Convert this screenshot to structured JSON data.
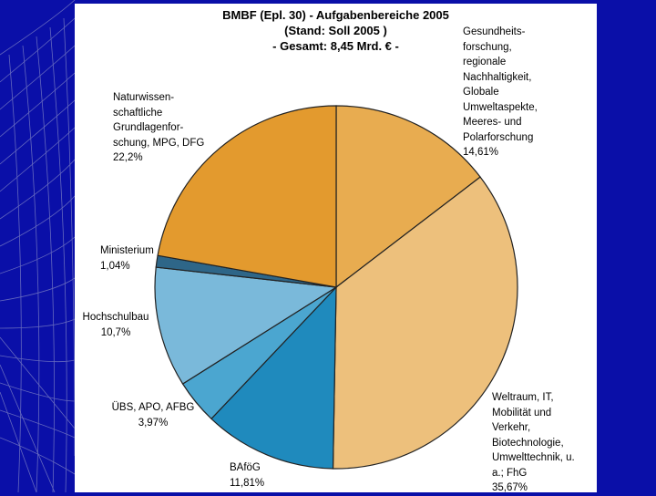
{
  "chart_data": {
    "type": "pie",
    "title": [
      "BMBF (Epl. 30) - Aufgabenbereiche 2005",
      "(Stand: Soll 2005 )",
      "- Gesamt: 8,45 Mrd. € -"
    ],
    "slices": [
      {
        "label_lines": [
          "Gesundheits-",
          "forschung,",
          "regionale",
          "Nachhaltigkeit,",
          "Globale",
          "Umweltaspekte,",
          "Meeres- und",
          "Polarforschung"
        ],
        "value_text": "14,61%",
        "value": 14.61,
        "color": "#e8ac50"
      },
      {
        "label_lines": [
          "Weltraum, IT,",
          "Mobilität und",
          "Verkehr,",
          "Biotechnologie,",
          "Umwelttechnik, u.",
          "a.; FhG"
        ],
        "value_text": "35,67%",
        "value": 35.67,
        "color": "#edc07c"
      },
      {
        "label_lines": [
          "BAföG"
        ],
        "value_text": "11,81%",
        "value": 11.81,
        "color": "#1f8abd"
      },
      {
        "label_lines": [
          "ÜBS, APO, AFBG"
        ],
        "value_text": "3,97%",
        "value": 3.97,
        "color": "#4ba6d0"
      },
      {
        "label_lines": [
          "Hochschulbau"
        ],
        "value_text": "10,7%",
        "value": 10.7,
        "color": "#7ab9da"
      },
      {
        "label_lines": [
          "Ministerium"
        ],
        "value_text": "1,04%",
        "value": 1.04,
        "color": "#2e6688"
      },
      {
        "label_lines": [
          "Naturwissen-",
          "schaftliche",
          "Grundlagenfor-",
          "schung, MPG, DFG"
        ],
        "value_text": "22,2%",
        "value": 22.2,
        "color": "#e39a2e"
      }
    ]
  }
}
